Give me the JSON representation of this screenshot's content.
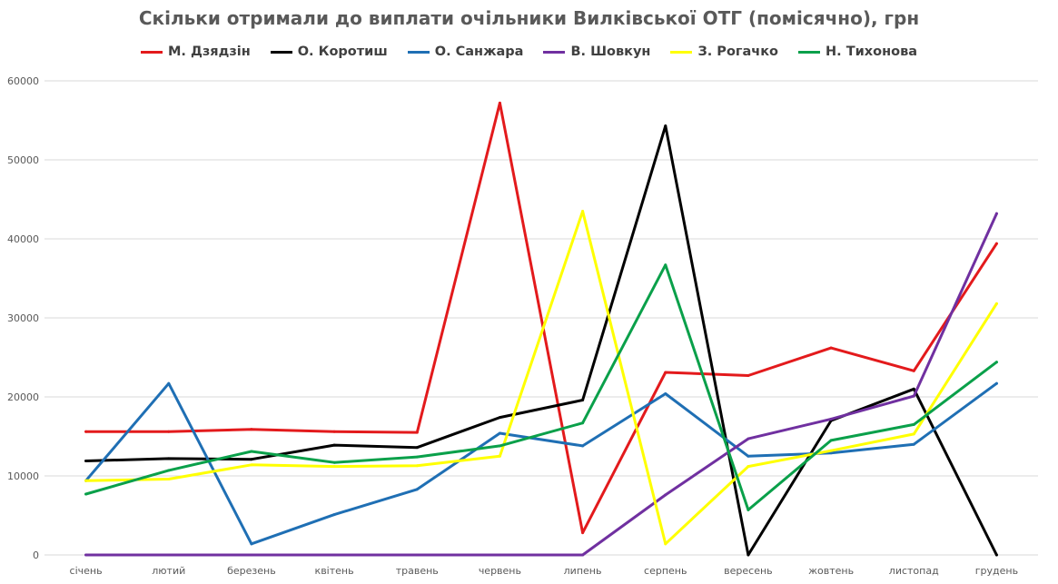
{
  "chart_data": {
    "type": "line",
    "title": "Скільки отримали до виплати очільники Вилківської ОТГ (помісячно), грн",
    "xlabel": "",
    "ylabel": "",
    "ylim": [
      0,
      60000
    ],
    "yticks": [
      0,
      10000,
      20000,
      30000,
      40000,
      50000,
      60000
    ],
    "ytick_labels": [
      "0",
      "10000",
      "20000",
      "30000",
      "40000",
      "50000",
      "60000"
    ],
    "grid": true,
    "legend_position": "top",
    "categories": [
      "січень",
      "лютий",
      "березень",
      "квітень",
      "травень",
      "червень",
      "липень",
      "серпень",
      "вересень",
      "жовтень",
      "листопад",
      "грудень"
    ],
    "series": [
      {
        "name": "М. Дзядзін",
        "color": "#e31a1c",
        "values": [
          15600,
          15600,
          15900,
          15600,
          15500,
          57200,
          2800,
          23100,
          22700,
          26200,
          23300,
          39400
        ]
      },
      {
        "name": "О. Коротиш",
        "color": "#000000",
        "values": [
          11900,
          12200,
          12100,
          13900,
          13600,
          17400,
          19600,
          54300,
          0,
          17000,
          21000,
          0
        ]
      },
      {
        "name": "О. Санжара",
        "color": "#1f6fb4",
        "values": [
          9400,
          21700,
          1400,
          5100,
          8300,
          15400,
          13800,
          20400,
          12500,
          12900,
          14000,
          21700
        ]
      },
      {
        "name": "В. Шовкун",
        "color": "#7030a0",
        "values": [
          0,
          0,
          0,
          0,
          0,
          0,
          0,
          7600,
          14700,
          17200,
          20100,
          43200
        ]
      },
      {
        "name": "З. Рогачко",
        "color": "#ffff00",
        "values": [
          9400,
          9600,
          11400,
          11200,
          11300,
          12500,
          43500,
          1400,
          11200,
          13200,
          15300,
          31800
        ]
      },
      {
        "name": "Н. Тихонова",
        "color": "#0aa04a",
        "values": [
          7700,
          10700,
          13100,
          11700,
          12400,
          13800,
          16700,
          36700,
          5700,
          14500,
          16500,
          24400
        ]
      }
    ]
  }
}
